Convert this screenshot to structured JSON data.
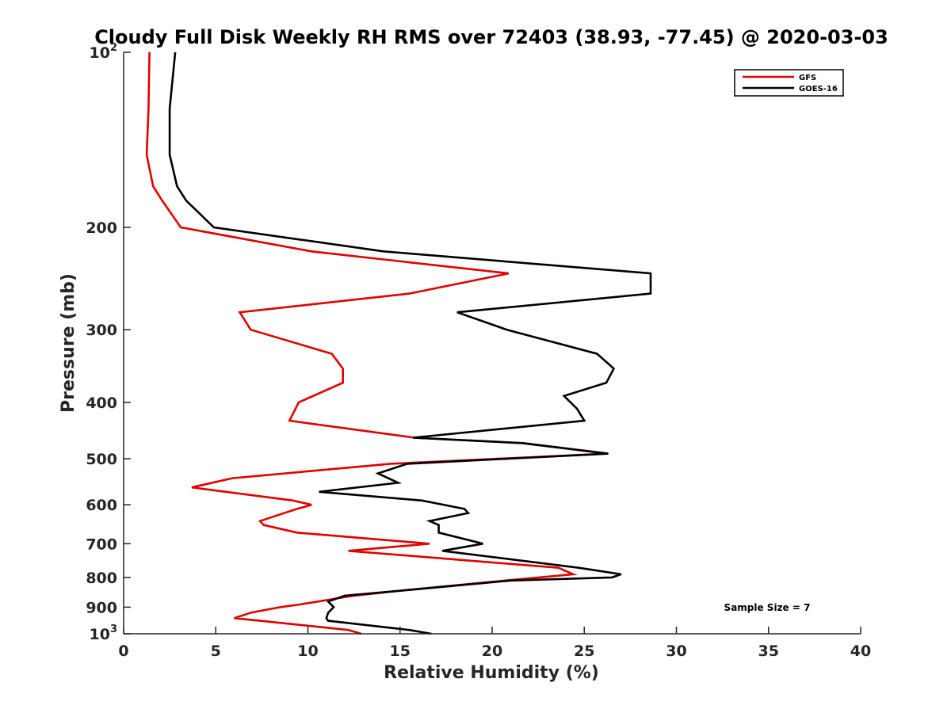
{
  "chart_data": {
    "type": "line",
    "title": "Cloudy Full Disk Weekly RH RMS over 72403 (38.93, -77.45) @ 2020-03-03",
    "xlabel": "Relative Humidity (%)",
    "ylabel": "Pressure (mb)",
    "xlim": [
      0,
      40
    ],
    "ylim": [
      100,
      1000
    ],
    "y_scale": "log",
    "y_reversed": true,
    "x_ticks": [
      0,
      5,
      10,
      15,
      20,
      25,
      30,
      35,
      40
    ],
    "y_ticks": [
      {
        "value": 100,
        "base": "10",
        "exp": "2"
      },
      {
        "value": 200,
        "label": "200"
      },
      {
        "value": 300,
        "label": "300"
      },
      {
        "value": 400,
        "label": "400"
      },
      {
        "value": 500,
        "label": "500"
      },
      {
        "value": 600,
        "label": "600"
      },
      {
        "value": 700,
        "label": "700"
      },
      {
        "value": 800,
        "label": "800"
      },
      {
        "value": 900,
        "label": "900"
      },
      {
        "value": 1000,
        "base": "10",
        "exp": "3"
      }
    ],
    "grid": false,
    "legend_position": "top-right",
    "annotation": "Sample Size = 7",
    "series": [
      {
        "name": "GFS",
        "color": "#e00000",
        "points": [
          [
            1.4,
            100
          ],
          [
            1.35,
            125
          ],
          [
            1.25,
            150
          ],
          [
            1.6,
            170
          ],
          [
            2.1,
            180
          ],
          [
            3.1,
            200
          ],
          [
            10.2,
            220
          ],
          [
            20.9,
            240
          ],
          [
            15.5,
            260
          ],
          [
            6.3,
            280
          ],
          [
            6.9,
            300
          ],
          [
            11.3,
            330
          ],
          [
            11.9,
            350
          ],
          [
            11.9,
            370
          ],
          [
            9.5,
            400
          ],
          [
            9.0,
            430
          ],
          [
            15.8,
            460
          ],
          [
            21.7,
            470
          ],
          [
            26.3,
            490
          ],
          [
            14.5,
            510
          ],
          [
            5.9,
            540
          ],
          [
            3.7,
            560
          ],
          [
            9.2,
            590
          ],
          [
            10.2,
            600
          ],
          [
            9.4,
            610
          ],
          [
            7.4,
            640
          ],
          [
            7.6,
            650
          ],
          [
            9.4,
            670
          ],
          [
            16.6,
            700
          ],
          [
            12.2,
            720
          ],
          [
            23.6,
            770
          ],
          [
            24.4,
            790
          ],
          [
            20.7,
            810
          ],
          [
            15.5,
            840
          ],
          [
            12.5,
            860
          ],
          [
            9.6,
            890
          ],
          [
            8.5,
            900
          ],
          [
            6.9,
            920
          ],
          [
            6.0,
            940
          ],
          [
            7.4,
            950
          ],
          [
            12.2,
            985
          ],
          [
            12.9,
            1000
          ]
        ]
      },
      {
        "name": "GOES-16",
        "color": "#000000",
        "points": [
          [
            2.8,
            100
          ],
          [
            2.5,
            125
          ],
          [
            2.5,
            150
          ],
          [
            2.9,
            170
          ],
          [
            3.4,
            180
          ],
          [
            4.9,
            200
          ],
          [
            14.1,
            220
          ],
          [
            28.6,
            240
          ],
          [
            28.6,
            260
          ],
          [
            18.1,
            280
          ],
          [
            20.8,
            300
          ],
          [
            25.7,
            330
          ],
          [
            26.6,
            350
          ],
          [
            26.2,
            370
          ],
          [
            23.9,
            390
          ],
          [
            24.6,
            410
          ],
          [
            25.0,
            430
          ],
          [
            15.7,
            460
          ],
          [
            21.6,
            470
          ],
          [
            26.3,
            490
          ],
          [
            15.4,
            510
          ],
          [
            13.8,
            530
          ],
          [
            14.9,
            550
          ],
          [
            10.6,
            570
          ],
          [
            16.2,
            590
          ],
          [
            18.5,
            610
          ],
          [
            18.7,
            620
          ],
          [
            16.6,
            640
          ],
          [
            17.1,
            650
          ],
          [
            17.1,
            670
          ],
          [
            19.5,
            700
          ],
          [
            17.3,
            720
          ],
          [
            24.7,
            770
          ],
          [
            27.0,
            790
          ],
          [
            26.5,
            800
          ],
          [
            21.0,
            810
          ],
          [
            15.6,
            840
          ],
          [
            12.0,
            860
          ],
          [
            11.1,
            880
          ],
          [
            11.4,
            900
          ],
          [
            11.1,
            920
          ],
          [
            11.0,
            940
          ],
          [
            11.1,
            950
          ],
          [
            15.5,
            985
          ],
          [
            16.7,
            1000
          ]
        ]
      }
    ]
  }
}
